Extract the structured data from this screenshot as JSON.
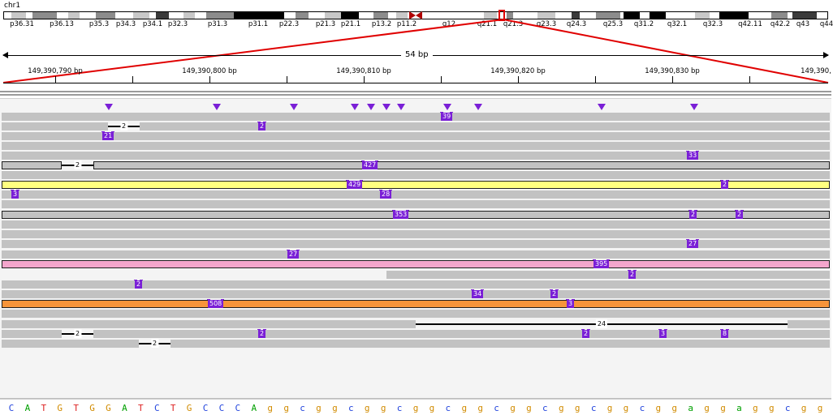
{
  "header": {
    "chromosome": "chr1"
  },
  "ideogram": {
    "bands": [
      "p36.31",
      "p36.13",
      "p35.3",
      "p34.3",
      "p34.1",
      "p32.3",
      "p31.3",
      "p31.1",
      "p22.3",
      "p21.3",
      "p21.1",
      "p13.2",
      "p11.2",
      "q12",
      "q21.1",
      "q21.3",
      "q23.3",
      "q24.3",
      "q25.3",
      "q31.2",
      "q32.1",
      "q32.3",
      "q42.11",
      "q42.2",
      "q43",
      "q44"
    ]
  },
  "ruler": {
    "width_label": "54 bp",
    "ticks": [
      "149,390,790 bp",
      "149,390,800 bp",
      "149,390,810 bp",
      "149,390,820 bp",
      "149,390,830 bp",
      "149,390,"
    ]
  },
  "colors": {
    "read": "#c2c2c2",
    "insertion": "#7a1fd6",
    "yellow": "#ffff80",
    "pink": "#f4a6cc",
    "orange": "#f7943a",
    "zoom_box": "#e00000"
  },
  "reads": {
    "deletion_labels": [
      "2",
      "2",
      "24",
      "2",
      "2"
    ],
    "insertion_labels": [
      "39",
      "2",
      "21",
      "33",
      "427",
      "429",
      "2",
      "3",
      "28",
      "353",
      "2",
      "2",
      "27",
      "27",
      "395",
      "2",
      "2",
      "34",
      "2",
      "508",
      "3",
      "2",
      "2",
      "3",
      "8"
    ]
  },
  "sequence": [
    "C",
    "A",
    "T",
    "G",
    "T",
    "G",
    "G",
    "A",
    "T",
    "C",
    "T",
    "G",
    "C",
    "C",
    "C",
    "A",
    "g",
    "g",
    "c",
    "g",
    "g",
    "c",
    "g",
    "g",
    "c",
    "g",
    "g",
    "c",
    "g",
    "g",
    "c",
    "g",
    "g",
    "c",
    "g",
    "g",
    "c",
    "g",
    "g",
    "c",
    "g",
    "g",
    "a",
    "g",
    "g",
    "a",
    "g",
    "g",
    "c",
    "g",
    "g"
  ]
}
